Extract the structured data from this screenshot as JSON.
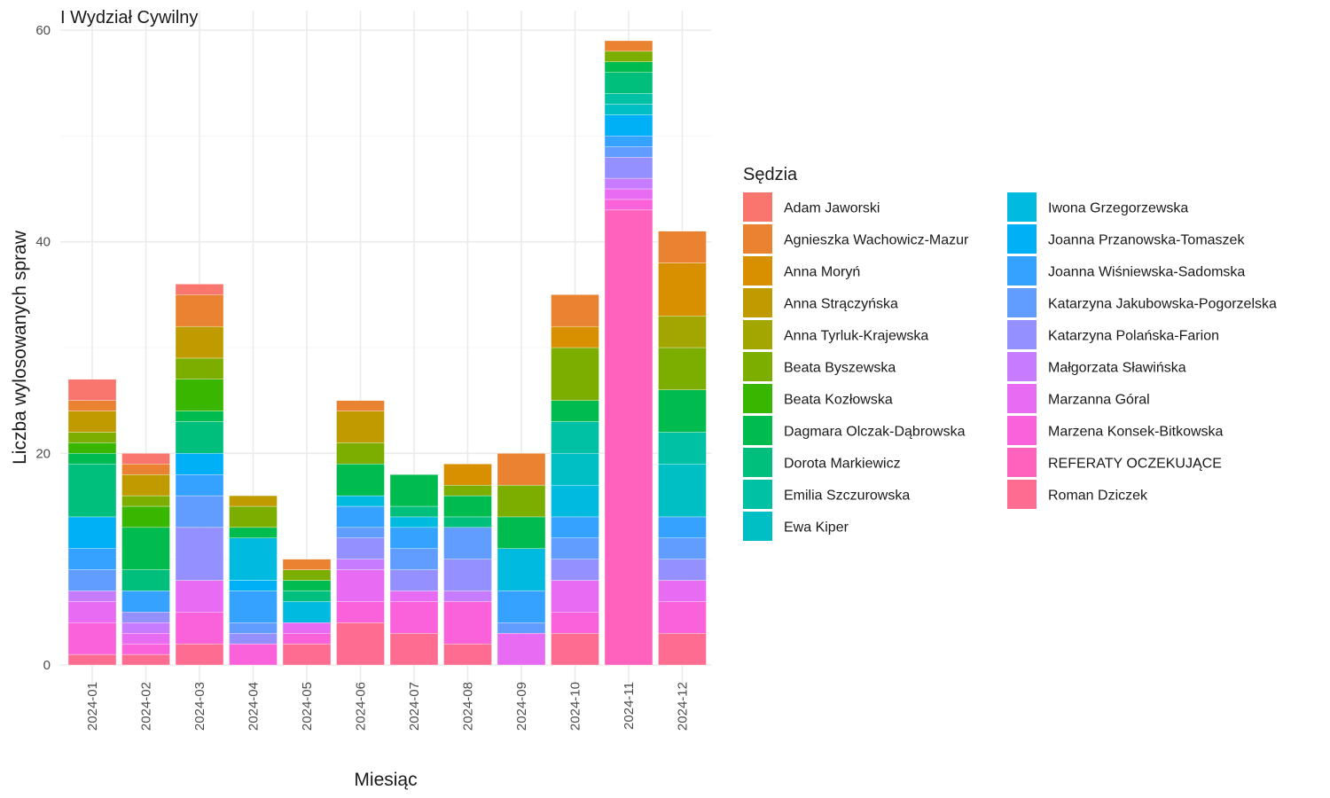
{
  "chart_data": {
    "type": "bar",
    "stacked": true,
    "title": "I Wydział Cywilny",
    "xlabel": "Miesiąc",
    "ylabel": "Liczba wylosowanych spraw",
    "ylim": [
      0,
      60
    ],
    "y_ticks": [
      0,
      20,
      40,
      60
    ],
    "grid": true,
    "legend_title": "Sędzia",
    "legend_position": "right",
    "categories": [
      "2024-01",
      "2024-02",
      "2024-03",
      "2024-04",
      "2024-05",
      "2024-06",
      "2024-07",
      "2024-08",
      "2024-09",
      "2024-10",
      "2024-11",
      "2024-12"
    ],
    "series": [
      {
        "name": "Adam Jaworski",
        "color": "#F8766D",
        "values": [
          2,
          1,
          1,
          0,
          0,
          0,
          0,
          0,
          0,
          0,
          0,
          0
        ]
      },
      {
        "name": "Agnieszka Wachowicz-Mazur",
        "color": "#EA8331",
        "values": [
          1,
          1,
          3,
          0,
          1,
          1,
          0,
          0,
          3,
          3,
          1,
          3
        ]
      },
      {
        "name": "Anna Moryń",
        "color": "#D89000",
        "values": [
          0,
          0,
          0,
          0,
          0,
          0,
          0,
          2,
          0,
          2,
          0,
          5
        ]
      },
      {
        "name": "Anna Strączyńska",
        "color": "#C09B00",
        "values": [
          2,
          2,
          3,
          1,
          0,
          3,
          0,
          0,
          0,
          0,
          0,
          0
        ]
      },
      {
        "name": "Anna Tyrluk-Krajewska",
        "color": "#A3A500",
        "values": [
          0,
          0,
          0,
          0,
          0,
          0,
          0,
          0,
          0,
          0,
          0,
          3
        ]
      },
      {
        "name": "Beata Byszewska",
        "color": "#7CAE00",
        "values": [
          1,
          1,
          2,
          2,
          1,
          2,
          0,
          1,
          3,
          5,
          1,
          4
        ]
      },
      {
        "name": "Beata Kozłowska",
        "color": "#39B600",
        "values": [
          1,
          2,
          3,
          0,
          0,
          0,
          0,
          0,
          0,
          0,
          0,
          0
        ]
      },
      {
        "name": "Dagmara Olczak-Dąbrowska",
        "color": "#00BB4E",
        "values": [
          1,
          4,
          1,
          1,
          1,
          3,
          3,
          2,
          3,
          2,
          1,
          4
        ]
      },
      {
        "name": "Dorota Markiewicz",
        "color": "#00BF7D",
        "values": [
          5,
          2,
          3,
          0,
          1,
          0,
          1,
          1,
          0,
          0,
          2,
          0
        ]
      },
      {
        "name": "Emilia Szczurowska",
        "color": "#00C1A3",
        "values": [
          0,
          0,
          0,
          0,
          0,
          0,
          0,
          0,
          0,
          3,
          1,
          3
        ]
      },
      {
        "name": "Ewa Kiper",
        "color": "#00BFC4",
        "values": [
          0,
          0,
          0,
          0,
          0,
          0,
          0,
          0,
          0,
          3,
          1,
          5
        ]
      },
      {
        "name": "Iwona Grzegorzewska",
        "color": "#00BAE0",
        "values": [
          0,
          0,
          0,
          4,
          2,
          1,
          1,
          0,
          4,
          3,
          0,
          0
        ]
      },
      {
        "name": "Joanna Przanowska-Tomaszek",
        "color": "#00B0F6",
        "values": [
          3,
          0,
          2,
          1,
          0,
          0,
          0,
          0,
          0,
          0,
          2,
          0
        ]
      },
      {
        "name": "Joanna Wiśniewska-Sadomska",
        "color": "#35A2FF",
        "values": [
          2,
          2,
          2,
          3,
          0,
          2,
          2,
          0,
          3,
          2,
          1,
          2
        ]
      },
      {
        "name": "Katarzyna Jakubowska-Pogorzelska",
        "color": "#619CFF",
        "values": [
          2,
          0,
          3,
          1,
          0,
          1,
          2,
          3,
          1,
          2,
          1,
          2
        ]
      },
      {
        "name": "Katarzyna Polańska-Farion",
        "color": "#9590FF",
        "values": [
          0,
          1,
          5,
          1,
          0,
          2,
          2,
          3,
          0,
          2,
          2,
          2
        ]
      },
      {
        "name": "Małgorzata Sławińska",
        "color": "#C77CFF",
        "values": [
          1,
          1,
          0,
          0,
          0,
          1,
          0,
          1,
          0,
          0,
          1,
          0
        ]
      },
      {
        "name": "Marzanna Góral",
        "color": "#E76BF3",
        "values": [
          2,
          1,
          3,
          0,
          1,
          3,
          1,
          0,
          3,
          3,
          1,
          2
        ]
      },
      {
        "name": "Marzena Konsek-Bitkowska",
        "color": "#FA62DB",
        "values": [
          3,
          1,
          3,
          2,
          1,
          2,
          3,
          4,
          0,
          2,
          1,
          3
        ]
      },
      {
        "name": "REFERATY OCZEKUJĄCE",
        "color": "#FF62BC",
        "values": [
          0,
          0,
          0,
          0,
          0,
          0,
          0,
          0,
          0,
          0,
          43,
          0
        ]
      },
      {
        "name": "Roman Dziczek",
        "color": "#FF6C91",
        "values": [
          1,
          1,
          2,
          0,
          2,
          4,
          3,
          2,
          0,
          3,
          0,
          3
        ]
      }
    ]
  }
}
